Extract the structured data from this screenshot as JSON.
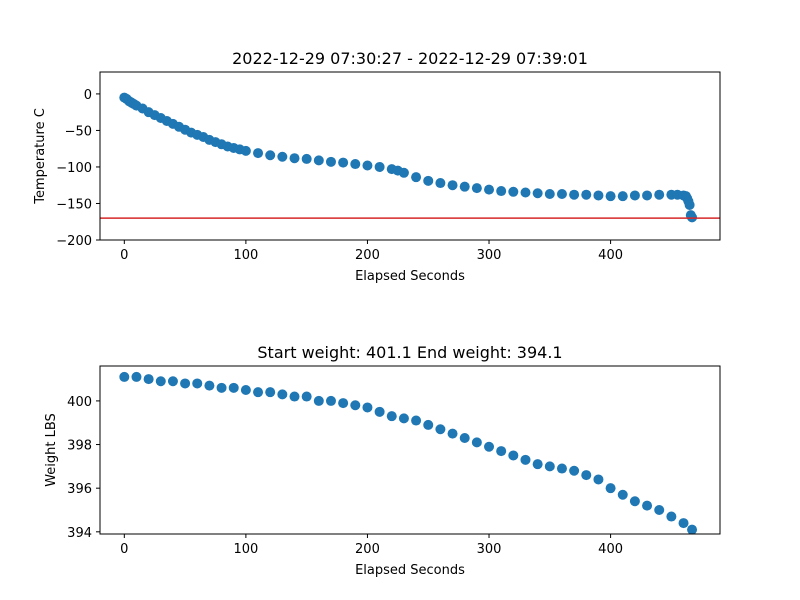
{
  "chart_data": [
    {
      "type": "scatter",
      "title": "2022-12-29 07:30:27 - 2022-12-29 07:39:01",
      "xlabel": "Elapsed Seconds",
      "ylabel": "Temperature C",
      "xlim": [
        -20,
        490
      ],
      "ylim": [
        -200,
        30
      ],
      "xticks": [
        0,
        100,
        200,
        300,
        400
      ],
      "yticks": [
        -200,
        -150,
        -100,
        -50,
        0
      ],
      "ytick_labels": [
        "−200",
        "−150",
        "−100",
        "−50",
        "0"
      ],
      "grid": false,
      "marker_color": "#1f77b4",
      "reference_line": {
        "y": -170,
        "color": "#d62728"
      },
      "series": [
        {
          "x": [
            0,
            2,
            4,
            6,
            8,
            10,
            15,
            20,
            25,
            30,
            35,
            40,
            45,
            50,
            55,
            60,
            65,
            70,
            75,
            80,
            85,
            90,
            95,
            100,
            110,
            120,
            130,
            140,
            150,
            160,
            170,
            180,
            190,
            200,
            210,
            220,
            225,
            230,
            240,
            250,
            260,
            270,
            280,
            290,
            300,
            310,
            320,
            330,
            340,
            350,
            360,
            370,
            380,
            390,
            400,
            410,
            420,
            430,
            440,
            450,
            455,
            460,
            462,
            463,
            464,
            465,
            466,
            467
          ],
          "y": [
            -5,
            -7,
            -10,
            -12,
            -14,
            -16,
            -20,
            -25,
            -29,
            -33,
            -37,
            -41,
            -45,
            -49,
            -53,
            -56,
            -59,
            -63,
            -66,
            -69,
            -72,
            -74,
            -76,
            -78,
            -81,
            -84,
            -86,
            -88,
            -89,
            -91,
            -93,
            -94,
            -96,
            -98,
            -100,
            -103,
            -105,
            -108,
            -114,
            -119,
            -122,
            -125,
            -127,
            -129,
            -131,
            -133,
            -134,
            -135,
            -136,
            -137,
            -137,
            -138,
            -138,
            -139,
            -140,
            -140,
            -139,
            -139,
            -138,
            -138,
            -138,
            -139,
            -140,
            -143,
            -147,
            -152,
            -166,
            -169
          ]
        }
      ]
    },
    {
      "type": "scatter",
      "title": "Start weight: 401.1 End weight: 394.1",
      "xlabel": "Elapsed Seconds",
      "ylabel": "Weight LBS",
      "xlim": [
        -20,
        490
      ],
      "ylim": [
        393.9,
        401.6
      ],
      "xticks": [
        0,
        100,
        200,
        300,
        400
      ],
      "yticks": [
        394,
        396,
        398,
        400
      ],
      "grid": false,
      "marker_color": "#1f77b4",
      "series": [
        {
          "x": [
            0,
            10,
            20,
            30,
            40,
            50,
            60,
            70,
            80,
            90,
            100,
            110,
            120,
            130,
            140,
            150,
            160,
            170,
            180,
            190,
            200,
            210,
            220,
            230,
            240,
            250,
            260,
            270,
            280,
            290,
            300,
            310,
            320,
            330,
            340,
            350,
            360,
            370,
            380,
            390,
            400,
            410,
            420,
            430,
            440,
            450,
            460,
            467
          ],
          "y": [
            401.1,
            401.1,
            401.0,
            400.9,
            400.9,
            400.8,
            400.8,
            400.7,
            400.6,
            400.6,
            400.5,
            400.4,
            400.4,
            400.3,
            400.2,
            400.2,
            400.0,
            400.0,
            399.9,
            399.8,
            399.7,
            399.5,
            399.3,
            399.2,
            399.1,
            398.9,
            398.7,
            398.5,
            398.3,
            398.1,
            397.9,
            397.7,
            397.5,
            397.3,
            397.1,
            397.0,
            396.9,
            396.8,
            396.6,
            396.4,
            396.0,
            395.7,
            395.4,
            395.2,
            395.0,
            394.7,
            394.4,
            394.1
          ]
        }
      ]
    }
  ]
}
